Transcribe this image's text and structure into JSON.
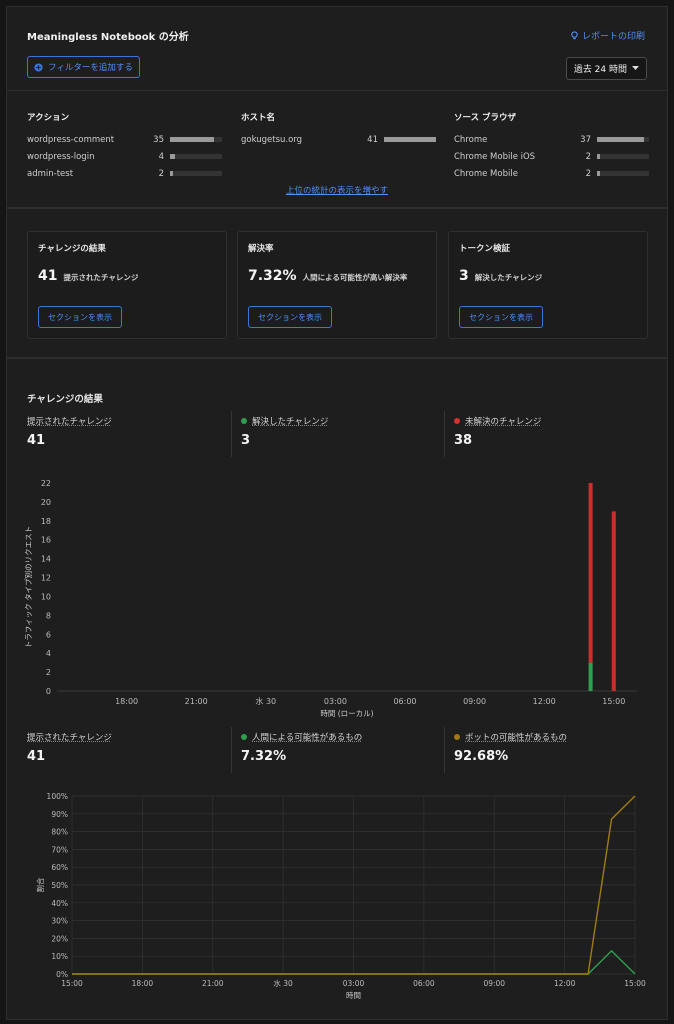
{
  "header": {
    "title": "Meaningless Notebook の分析",
    "print_label": "レポートの印刷",
    "filter_label": "フィルターを追加する",
    "time_range": "過去 24 時間"
  },
  "stats": {
    "more_label": "上位の統計の表示を増やす",
    "columns": [
      {
        "title": "アクション",
        "rows": [
          {
            "name": "wordpress-comment",
            "count": "35",
            "fraction": 0.85
          },
          {
            "name": "wordpress-login",
            "count": "4",
            "fraction": 0.1
          },
          {
            "name": "admin-test",
            "count": "2",
            "fraction": 0.05
          }
        ]
      },
      {
        "title": "ホスト名",
        "rows": [
          {
            "name": "gokugetsu.org",
            "count": "41",
            "fraction": 1.0
          }
        ]
      },
      {
        "title": "ソース ブラウザ",
        "rows": [
          {
            "name": "Chrome",
            "count": "37",
            "fraction": 0.9
          },
          {
            "name": "Chrome Mobile iOS",
            "count": "2",
            "fraction": 0.05
          },
          {
            "name": "Chrome Mobile",
            "count": "2",
            "fraction": 0.05
          }
        ]
      }
    ]
  },
  "cards": [
    {
      "title": "チャレンジの結果",
      "value": "41",
      "sub": "提示されたチャレンジ",
      "button": "セクションを表示"
    },
    {
      "title": "解決率",
      "value": "7.32%",
      "sub": "人間による可能性が高い解決率",
      "button": "セクションを表示"
    },
    {
      "title": "トークン検証",
      "value": "3",
      "sub": "解決したチャレンジ",
      "button": "セクションを表示"
    }
  ],
  "results": {
    "title": "チャレンジの結果",
    "kpis1": [
      {
        "label": "提示されたチャレンジ",
        "value": "41",
        "dot": ""
      },
      {
        "label": "解決したチャレンジ",
        "value": "3",
        "dot": "#2e9e4f"
      },
      {
        "label": "未解決のチャレンジ",
        "value": "38",
        "dot": "#d9302c"
      }
    ],
    "kpis2": [
      {
        "label": "提示されたチャレンジ",
        "value": "41",
        "dot": ""
      },
      {
        "label": "人間による可能性があるもの",
        "value": "7.32%",
        "dot": "#2e9e4f"
      },
      {
        "label": "ボットの可能性があるもの",
        "value": "92.68%",
        "dot": "#a07a12"
      }
    ]
  },
  "chart_data": [
    {
      "type": "bar",
      "title": "",
      "xlabel": "時間 (ローカル)",
      "ylabel": "トラフィック タイプ別のリクエスト",
      "ylim": [
        0,
        22
      ],
      "yticks": [
        0,
        2,
        4,
        6,
        8,
        10,
        12,
        14,
        16,
        18,
        20,
        22
      ],
      "x_ticks": [
        "18:00",
        "21:00",
        "水 30",
        "03:00",
        "06:00",
        "09:00",
        "12:00",
        "15:00"
      ],
      "x_tick_hours": [
        18,
        21,
        24,
        27,
        30,
        33,
        36,
        39
      ],
      "x_range_hours": [
        15,
        40
      ],
      "stacked": true,
      "bars": [
        {
          "hour": 38,
          "solved": 3,
          "unsolved": 19
        },
        {
          "hour": 39,
          "solved": 0,
          "unsolved": 19
        }
      ],
      "colors": {
        "solved": "#2e9e4f",
        "unsolved": "#c9302c"
      },
      "grid": false
    },
    {
      "type": "line",
      "title": "",
      "xlabel": "時間",
      "ylabel": "割合",
      "ylim": [
        0,
        100
      ],
      "yticks": [
        "0%",
        "10%",
        "20%",
        "30%",
        "40%",
        "50%",
        "60%",
        "70%",
        "80%",
        "90%",
        "100%"
      ],
      "x_ticks": [
        "15:00",
        "18:00",
        "21:00",
        "水 30",
        "03:00",
        "06:00",
        "09:00",
        "12:00",
        "15:00"
      ],
      "x_range_hours": [
        15,
        39
      ],
      "grid": true,
      "series": [
        {
          "name": "人間による可能性があるもの",
          "color": "#2e9e4f",
          "x": [
            15,
            37,
            38,
            39
          ],
          "values": [
            0,
            0,
            13,
            0
          ]
        },
        {
          "name": "ボットの可能性があるもの",
          "color": "#a07a12",
          "x": [
            15,
            37,
            38,
            39
          ],
          "values": [
            0,
            0,
            87,
            100
          ]
        }
      ]
    }
  ]
}
